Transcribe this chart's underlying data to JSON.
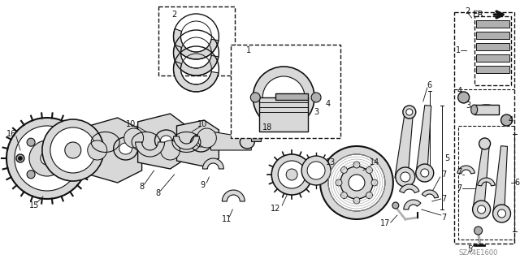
{
  "bg": "#ffffff",
  "diagram_code": "SZA4E1600",
  "fig_width": 6.4,
  "fig_height": 3.19,
  "dpi": 100,
  "gray_light": "#d8d8d8",
  "gray_mid": "#b0b0b0",
  "gray_dark": "#888888",
  "black": "#111111"
}
